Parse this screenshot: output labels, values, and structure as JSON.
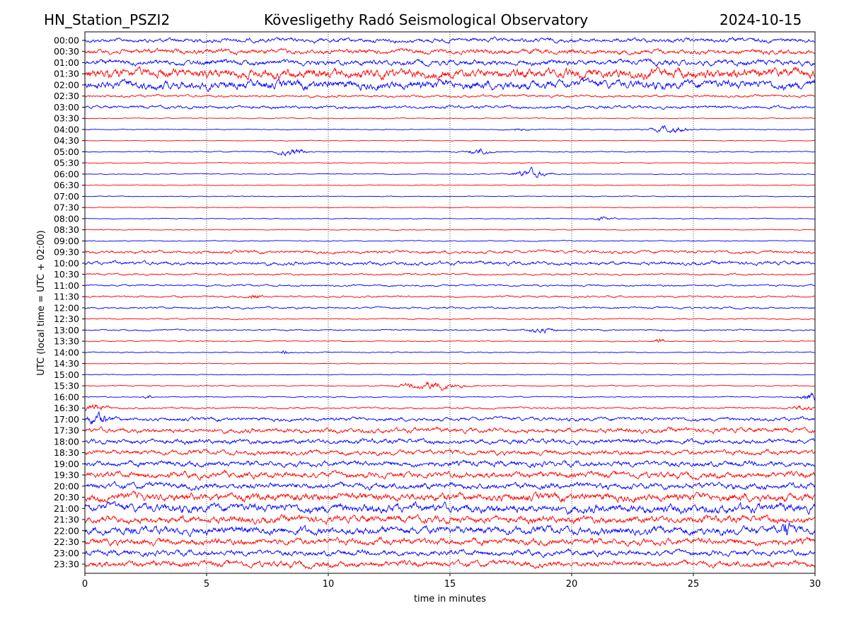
{
  "header": {
    "station": "HN_Station_PSZI2",
    "observatory": "Kövesligethy Radó Seismological Observatory",
    "date": "2024-10-15"
  },
  "chart_data": {
    "type": "line",
    "title": "Kövesligethy Radó Seismological Observatory",
    "xlabel": "time in minutes",
    "ylabel": "UTC (local time = UTC + 02:00)",
    "xlim": [
      0,
      30
    ],
    "xticks": [
      "0",
      "5",
      "10",
      "15",
      "20",
      "25",
      "30"
    ],
    "grid": "vertical dotted at 5-minute ticks",
    "colors": [
      "#0000ff",
      "#ff0000"
    ],
    "rows": [
      {
        "label": "00:00",
        "noise": 0.35
      },
      {
        "label": "00:30",
        "noise": 0.4
      },
      {
        "label": "01:00",
        "noise": 0.45
      },
      {
        "label": "01:30",
        "noise": 0.8
      },
      {
        "label": "02:00",
        "noise": 0.7
      },
      {
        "label": "02:30",
        "noise": 0.2
      },
      {
        "label": "03:00",
        "noise": 0.25
      },
      {
        "label": "03:30",
        "noise": 0.08
      },
      {
        "label": "04:00",
        "noise": 0.06,
        "events": [
          [
            24.1,
            0.6,
            1.2
          ],
          [
            17.8,
            0.2,
            1
          ]
        ]
      },
      {
        "label": "04:30",
        "noise": 0.05
      },
      {
        "label": "05:00",
        "noise": 0.08,
        "events": [
          [
            8.5,
            0.6,
            1
          ],
          [
            16.2,
            0.5,
            0.8
          ]
        ]
      },
      {
        "label": "05:30",
        "noise": 0.06
      },
      {
        "label": "06:00",
        "noise": 0.06,
        "events": [
          [
            18.3,
            0.7,
            1.2
          ]
        ]
      },
      {
        "label": "06:30",
        "noise": 0.06
      },
      {
        "label": "07:00",
        "noise": 0.06
      },
      {
        "label": "07:30",
        "noise": 0.06
      },
      {
        "label": "08:00",
        "noise": 0.06,
        "events": [
          [
            21.2,
            0.3,
            0.8
          ]
        ]
      },
      {
        "label": "08:30",
        "noise": 0.06
      },
      {
        "label": "09:00",
        "noise": 0.08
      },
      {
        "label": "09:30",
        "noise": 0.25
      },
      {
        "label": "10:00",
        "noise": 0.3
      },
      {
        "label": "10:30",
        "noise": 0.15
      },
      {
        "label": "11:00",
        "noise": 0.15
      },
      {
        "label": "11:30",
        "noise": 0.15,
        "events": [
          [
            7,
            0.5,
            0.4
          ]
        ]
      },
      {
        "label": "12:00",
        "noise": 0.15
      },
      {
        "label": "12:30",
        "noise": 0.1
      },
      {
        "label": "13:00",
        "noise": 0.12,
        "events": [
          [
            18.7,
            0.4,
            1
          ]
        ]
      },
      {
        "label": "13:30",
        "noise": 0.08,
        "events": [
          [
            23.6,
            0.6,
            0.3
          ]
        ]
      },
      {
        "label": "14:00",
        "noise": 0.08,
        "events": [
          [
            8.2,
            0.3,
            0.4
          ]
        ]
      },
      {
        "label": "14:30",
        "noise": 0.06
      },
      {
        "label": "15:00",
        "noise": 0.06
      },
      {
        "label": "15:30",
        "noise": 0.08,
        "events": [
          [
            14.3,
            0.7,
            2
          ]
        ]
      },
      {
        "label": "16:00",
        "noise": 0.08,
        "events": [
          [
            29.8,
            0.6,
            0.8
          ],
          [
            2.6,
            0.3,
            0.3
          ]
        ]
      },
      {
        "label": "16:30",
        "noise": 0.15,
        "events": [
          [
            0.4,
            0.6,
            0.8
          ],
          [
            29.5,
            0.4,
            0.8
          ]
        ]
      },
      {
        "label": "17:00",
        "noise": 0.3,
        "events": [
          [
            0.5,
            0.8,
            0.8
          ]
        ]
      },
      {
        "label": "17:30",
        "noise": 0.4
      },
      {
        "label": "18:00",
        "noise": 0.4
      },
      {
        "label": "18:30",
        "noise": 0.4
      },
      {
        "label": "19:00",
        "noise": 0.45
      },
      {
        "label": "19:30",
        "noise": 0.5
      },
      {
        "label": "20:00",
        "noise": 0.5
      },
      {
        "label": "20:30",
        "noise": 0.65
      },
      {
        "label": "21:00",
        "noise": 0.7
      },
      {
        "label": "21:30",
        "noise": 0.6
      },
      {
        "label": "22:00",
        "noise": 0.65,
        "events": [
          [
            28.8,
            1.5,
            0.3
          ]
        ]
      },
      {
        "label": "22:30",
        "noise": 0.55
      },
      {
        "label": "23:00",
        "noise": 0.45
      },
      {
        "label": "23:30",
        "noise": 0.5
      }
    ]
  }
}
